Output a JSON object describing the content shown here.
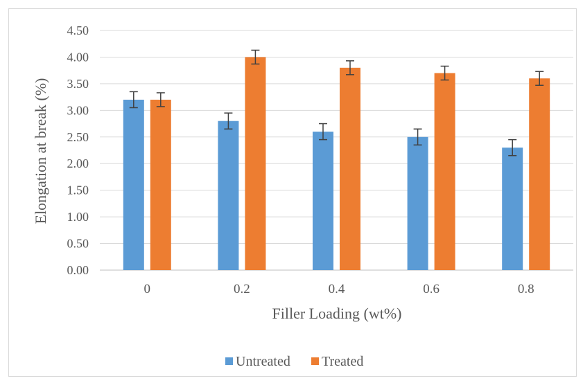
{
  "chart_data": {
    "type": "bar",
    "title": "",
    "xlabel": "Filler Loading (wt%)",
    "ylabel": "Elongation at break (%)",
    "ylim": [
      0,
      4.5
    ],
    "ytick_step": 0.5,
    "ytick_labels": [
      "0.00",
      "0.50",
      "1.00",
      "1.50",
      "2.00",
      "2.50",
      "3.00",
      "3.50",
      "4.00",
      "4.50"
    ],
    "categories": [
      "0",
      "0.2",
      "0.4",
      "0.6",
      "0.8"
    ],
    "series": [
      {
        "name": "Untreated",
        "color": "#5b9bd5",
        "values": [
          3.2,
          2.8,
          2.6,
          2.5,
          2.3
        ],
        "error": [
          0.15,
          0.15,
          0.15,
          0.15,
          0.15
        ]
      },
      {
        "name": "Treated",
        "color": "#ed7d31",
        "values": [
          3.2,
          4.0,
          3.8,
          3.7,
          3.6
        ],
        "error": [
          0.13,
          0.13,
          0.13,
          0.13,
          0.13
        ]
      }
    ],
    "grid": true,
    "legend_position": "bottom"
  }
}
